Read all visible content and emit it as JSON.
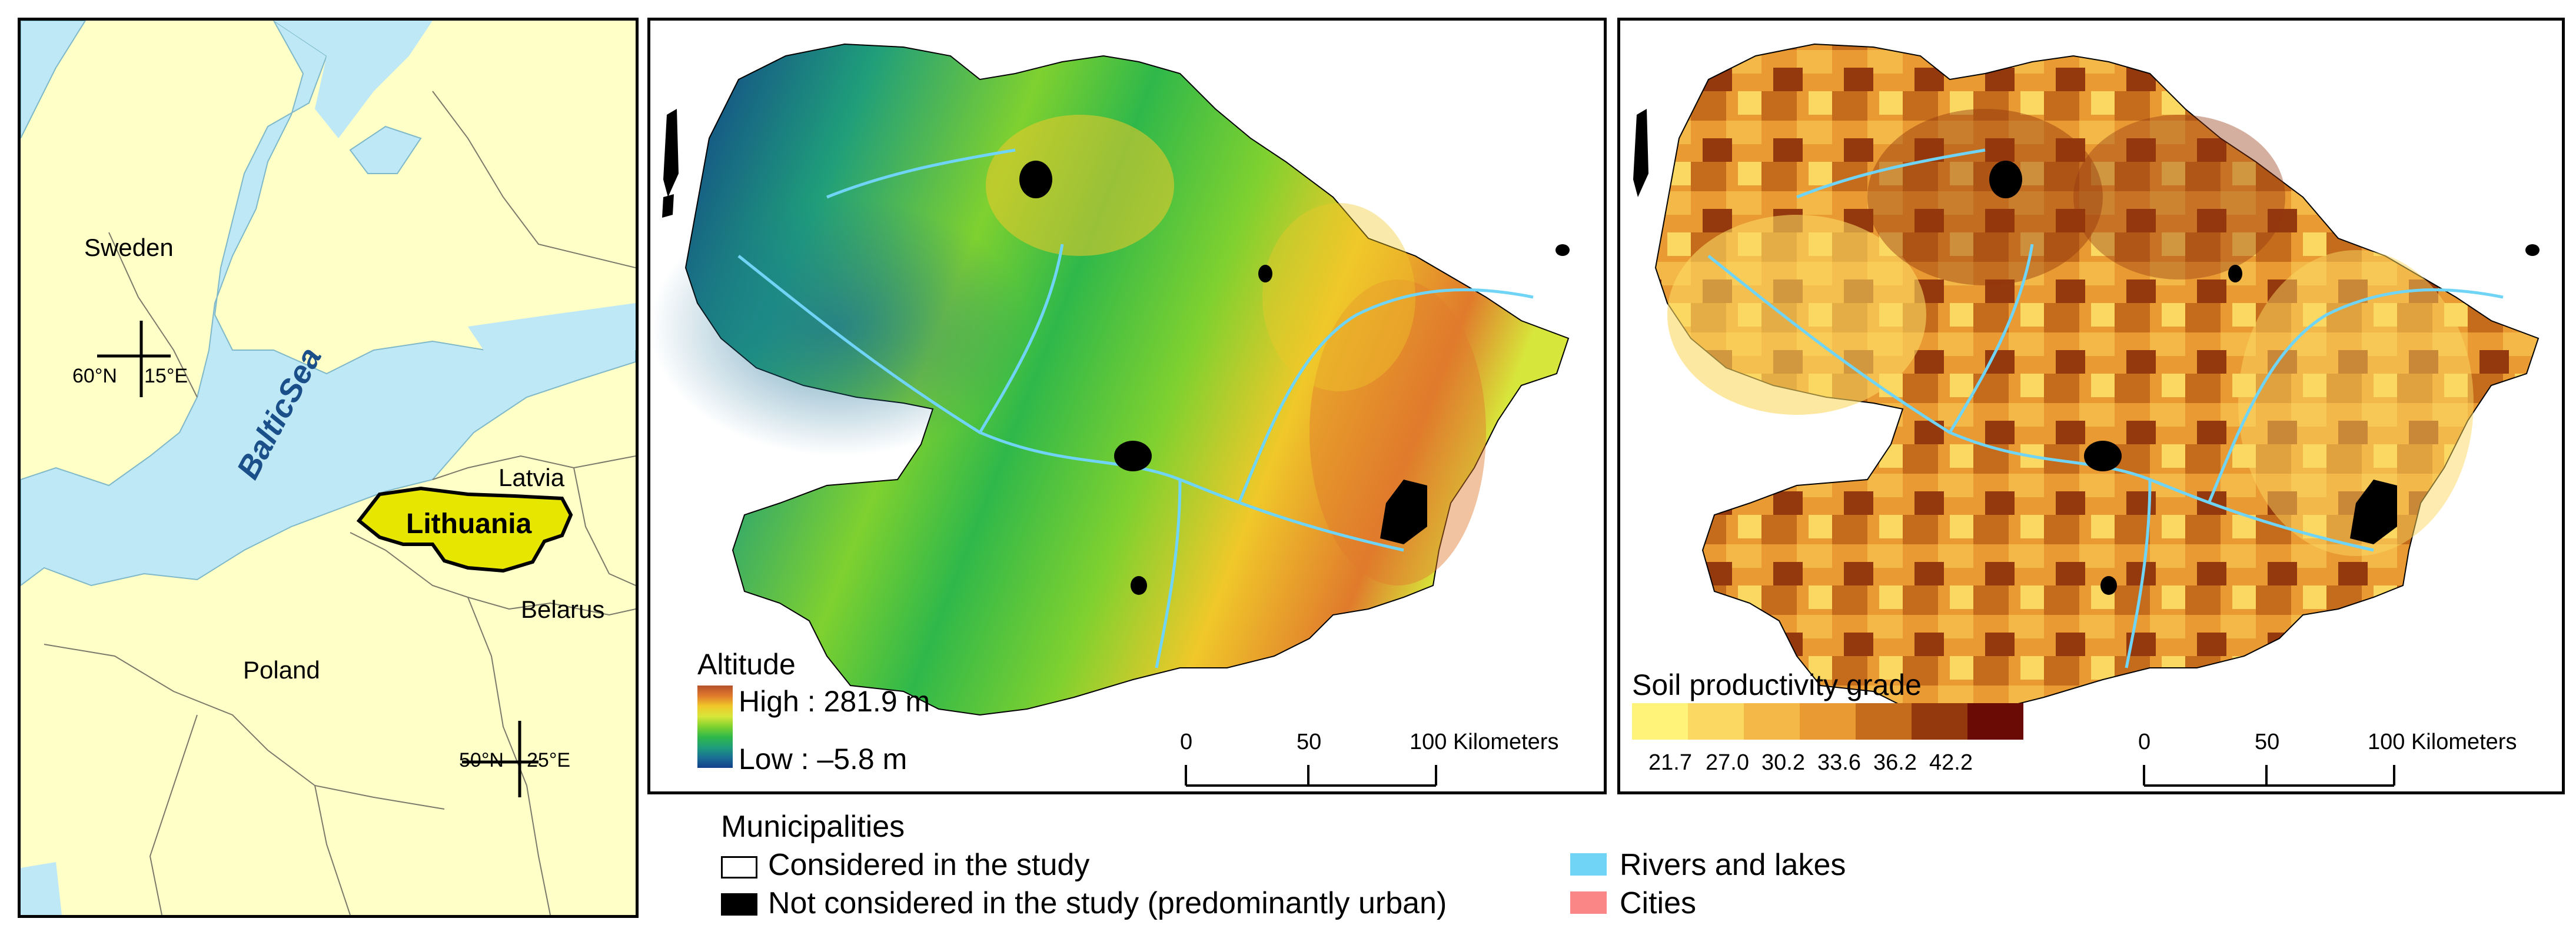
{
  "overview_map": {
    "labels": {
      "sweden": "Sweden",
      "baltic_sea": "BalticSea",
      "latvia": "Latvia",
      "lithuania": "Lithuania",
      "belarus": "Belarus",
      "poland": "Poland"
    },
    "graticule": {
      "north_a": "60°N",
      "east_a": "15°E",
      "north_b": "50°N",
      "east_b": "25°E"
    },
    "colors": {
      "land": "#ffffc8",
      "sea": "#bee8f5",
      "lithuania": "#e6e600",
      "sea_label": "#1a4f8a"
    }
  },
  "altitude_map": {
    "legend": {
      "title": "Altitude",
      "high": "High : 281.9 m",
      "low": "Low : –5.8 m",
      "ramp": [
        "#b5512b",
        "#e07a2c",
        "#f0c82a",
        "#d7e63a",
        "#7fd12f",
        "#2fb84a",
        "#1f9e7a",
        "#1a6f95",
        "#123f8a"
      ]
    },
    "scale_bar": {
      "ticks": [
        "0",
        "50",
        "100 Kilometers"
      ]
    }
  },
  "soil_map": {
    "legend": {
      "title": "Soil productivity grade",
      "classes": [
        "21.7",
        "27.0",
        "30.2",
        "33.6",
        "36.2",
        "42.2"
      ],
      "ramp": [
        "#fff37a",
        "#fbd862",
        "#f3b848",
        "#e99a32",
        "#c46c1c",
        "#94380e",
        "#6a0b05"
      ]
    },
    "scale_bar": {
      "ticks": [
        "0",
        "50",
        "100 Kilometers"
      ]
    }
  },
  "bottom_legend": {
    "municipalities_title": "Municipalities",
    "considered": "Considered in the study",
    "not_considered": "Not considered in the study (predominantly urban)",
    "rivers": "Rivers and lakes",
    "cities": "Cities",
    "colors": {
      "rivers": "#6fd4f6",
      "cities": "#fa8686",
      "urban": "#000000"
    }
  }
}
